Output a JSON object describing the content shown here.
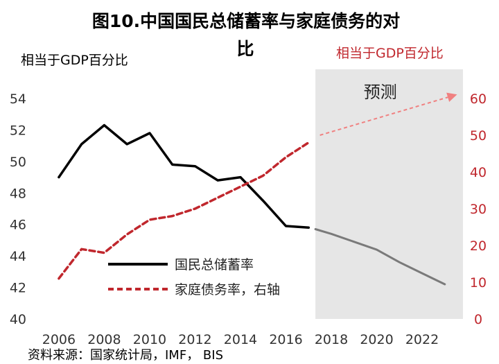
{
  "chart_data": {
    "type": "line",
    "title_line1": "图10.中国国民总储蓄率与家庭债务的对",
    "title_line2": "比",
    "ylabel_left": "相当于GDP百分比",
    "ylabel_right": "相当于GDP百分比",
    "ylim_left": [
      40,
      54
    ],
    "ylim_right": [
      0,
      60
    ],
    "yticks_left": [
      40,
      42,
      44,
      46,
      48,
      50,
      52,
      54
    ],
    "yticks_right": [
      0,
      10,
      20,
      30,
      40,
      50,
      60
    ],
    "xlim": [
      2005.3,
      2023.8
    ],
    "xticks": [
      2006,
      2008,
      2010,
      2012,
      2014,
      2016,
      2018,
      2020,
      2022
    ],
    "forecast_start": 2017.3,
    "forecast_label": "预测",
    "series": [
      {
        "name": "国民总储蓄率",
        "axis": "left",
        "color": "#000000",
        "forecast_color": "#7a7a7a",
        "x": [
          2006,
          2007,
          2008,
          2009,
          2010,
          2011,
          2012,
          2013,
          2014,
          2015,
          2016,
          2017
        ],
        "values": [
          49.0,
          51.1,
          52.3,
          51.1,
          51.8,
          49.8,
          49.7,
          48.8,
          49.0,
          47.5,
          45.9,
          45.8
        ],
        "forecast_x": [
          2017.3,
          2018,
          2019,
          2020,
          2021,
          2022,
          2023
        ],
        "forecast_values": [
          45.7,
          45.4,
          44.9,
          44.4,
          43.6,
          42.9,
          42.2
        ]
      },
      {
        "name": "家庭债务率，右轴",
        "axis": "right",
        "color": "#c0272d",
        "dashed": true,
        "x": [
          2006,
          2007,
          2008,
          2009,
          2010,
          2011,
          2012,
          2013,
          2014,
          2015,
          2016,
          2017
        ],
        "values": [
          11,
          19,
          18,
          23,
          27,
          28,
          30,
          33,
          36,
          39,
          44,
          48
        ],
        "forecast_arrow": {
          "from": [
            2017.5,
            50
          ],
          "to": [
            2023.5,
            61
          ]
        }
      }
    ]
  },
  "legend": {
    "savings_label": "国民总储蓄率",
    "debt_label": "家庭债务率，右轴"
  },
  "source": "资料来源：国家统计局，IMF， BIS",
  "colors": {
    "red": "#c0272d",
    "forecast_shade": "#e6e6e6",
    "arrow": "#f08080"
  }
}
